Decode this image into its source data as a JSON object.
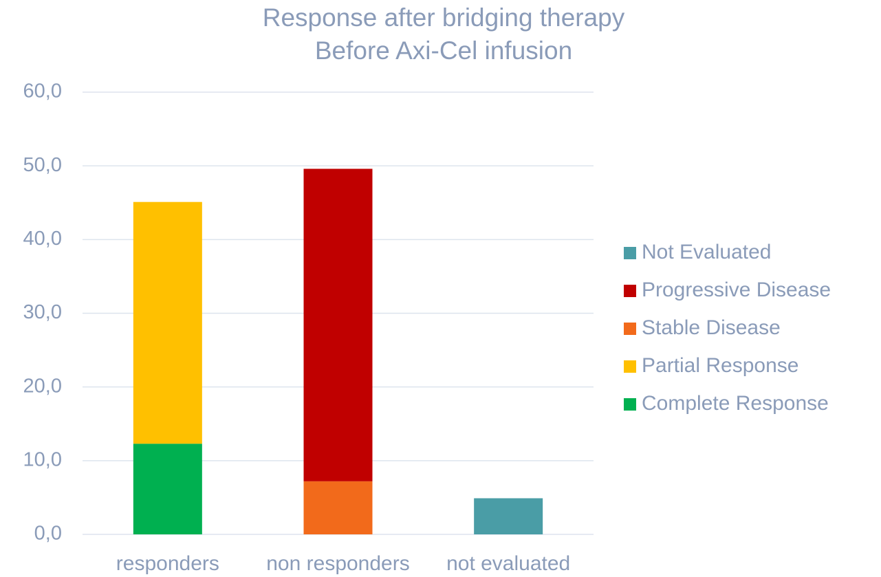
{
  "chart_data": {
    "type": "stacked_bar",
    "title": "Response after bridging therapy",
    "subtitle": "Before Axi-Cel infusion",
    "categories": [
      "responders",
      "non responders",
      "not evaluated"
    ],
    "series": [
      {
        "name": "Complete Response",
        "color": "#00b050",
        "values": [
          12.3,
          null,
          null
        ]
      },
      {
        "name": "Partial Response",
        "color": "#ffc000",
        "values": [
          32.8,
          null,
          null
        ]
      },
      {
        "name": "Stable Disease",
        "color": "#f26a1b",
        "values": [
          null,
          7.2,
          null
        ]
      },
      {
        "name": "Progressive Disease",
        "color": "#c00000",
        "values": [
          null,
          42.4,
          null
        ]
      },
      {
        "name": "Not Evaluated",
        "color": "#4a9da6",
        "values": [
          null,
          null,
          4.9
        ]
      }
    ],
    "ylim": [
      0,
      60
    ],
    "yticks": [
      {
        "value": 0,
        "label": "0,0"
      },
      {
        "value": 10,
        "label": "10,0"
      },
      {
        "value": 20,
        "label": "20,0"
      },
      {
        "value": 30,
        "label": "30,0"
      },
      {
        "value": 40,
        "label": "40,0"
      },
      {
        "value": 50,
        "label": "50,0"
      },
      {
        "value": 60,
        "label": "60,0"
      }
    ],
    "grid": true,
    "legend": "right"
  }
}
